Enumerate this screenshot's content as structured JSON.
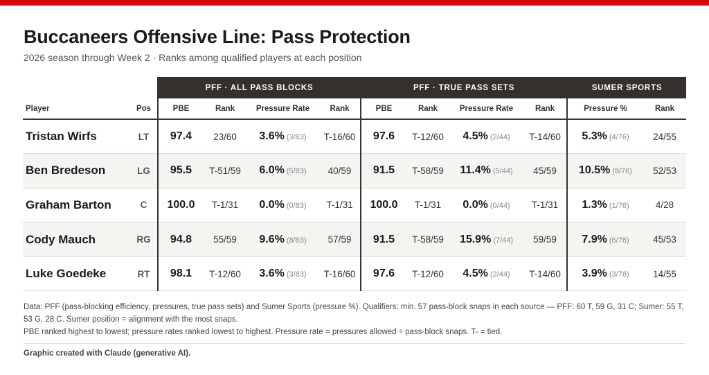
{
  "title": "Buccaneers Offensive Line: Pass Protection",
  "subtitle": "2026 season through Week 2  ·  Ranks among qualified players at each position",
  "accent_color": "#d50a0a",
  "header_color": "#34302b",
  "groups": {
    "all": "PFF · ALL PASS BLOCKS",
    "true": "PFF · TRUE PASS SETS",
    "sumer": "SUMER SPORTS"
  },
  "columns": {
    "player": "Player",
    "pos": "Pos",
    "pbe": "PBE",
    "rank": "Rank",
    "pressure_rate": "Pressure Rate",
    "pressure_pct": "Pressure %"
  },
  "rows": [
    {
      "player": "Tristan Wirfs",
      "pos": "LT",
      "all_pbe": "97.4",
      "all_pbe_rank": "23/60",
      "all_pr": "3.6%",
      "all_pr_count": "(3/83)",
      "all_pr_rank": "T-16/60",
      "true_pbe": "97.6",
      "true_pbe_rank": "T-12/60",
      "true_pr": "4.5%",
      "true_pr_count": "(2/44)",
      "true_pr_rank": "T-14/60",
      "sumer_pct": "5.3%",
      "sumer_count": "(4/76)",
      "sumer_rank": "24/55"
    },
    {
      "player": "Ben Bredeson",
      "pos": "LG",
      "all_pbe": "95.5",
      "all_pbe_rank": "T-51/59",
      "all_pr": "6.0%",
      "all_pr_count": "(5/83)",
      "all_pr_rank": "40/59",
      "true_pbe": "91.5",
      "true_pbe_rank": "T-58/59",
      "true_pr": "11.4%",
      "true_pr_count": "(5/44)",
      "true_pr_rank": "45/59",
      "sumer_pct": "10.5%",
      "sumer_count": "(8/76)",
      "sumer_rank": "52/53"
    },
    {
      "player": "Graham Barton",
      "pos": "C",
      "all_pbe": "100.0",
      "all_pbe_rank": "T-1/31",
      "all_pr": "0.0%",
      "all_pr_count": "(0/83)",
      "all_pr_rank": "T-1/31",
      "true_pbe": "100.0",
      "true_pbe_rank": "T-1/31",
      "true_pr": "0.0%",
      "true_pr_count": "(0/44)",
      "true_pr_rank": "T-1/31",
      "sumer_pct": "1.3%",
      "sumer_count": "(1/76)",
      "sumer_rank": "4/28"
    },
    {
      "player": "Cody Mauch",
      "pos": "RG",
      "all_pbe": "94.8",
      "all_pbe_rank": "55/59",
      "all_pr": "9.6%",
      "all_pr_count": "(8/83)",
      "all_pr_rank": "57/59",
      "true_pbe": "91.5",
      "true_pbe_rank": "T-58/59",
      "true_pr": "15.9%",
      "true_pr_count": "(7/44)",
      "true_pr_rank": "59/59",
      "sumer_pct": "7.9%",
      "sumer_count": "(6/76)",
      "sumer_rank": "45/53"
    },
    {
      "player": "Luke Goedeke",
      "pos": "RT",
      "all_pbe": "98.1",
      "all_pbe_rank": "T-12/60",
      "all_pr": "3.6%",
      "all_pr_count": "(3/83)",
      "all_pr_rank": "T-16/60",
      "true_pbe": "97.6",
      "true_pbe_rank": "T-12/60",
      "true_pr": "4.5%",
      "true_pr_count": "(2/44)",
      "true_pr_rank": "T-14/60",
      "sumer_pct": "3.9%",
      "sumer_count": "(3/76)",
      "sumer_rank": "14/55"
    }
  ],
  "footnotes": [
    "Data: PFF (pass-blocking efficiency, pressures, true pass sets) and Sumer Sports (pressure %). Qualifiers: min. 57 pass-block snaps in each source — PFF: 60 T, 59 G, 31 C; Sumer: 55 T, 53 G, 28 C. Sumer position = alignment with the most snaps.",
    "PBE ranked highest to lowest; pressure rates ranked lowest to highest. Pressure rate = pressures allowed ÷ pass-block snaps. T- = tied."
  ],
  "credit": "Graphic created with Claude (generative AI)."
}
